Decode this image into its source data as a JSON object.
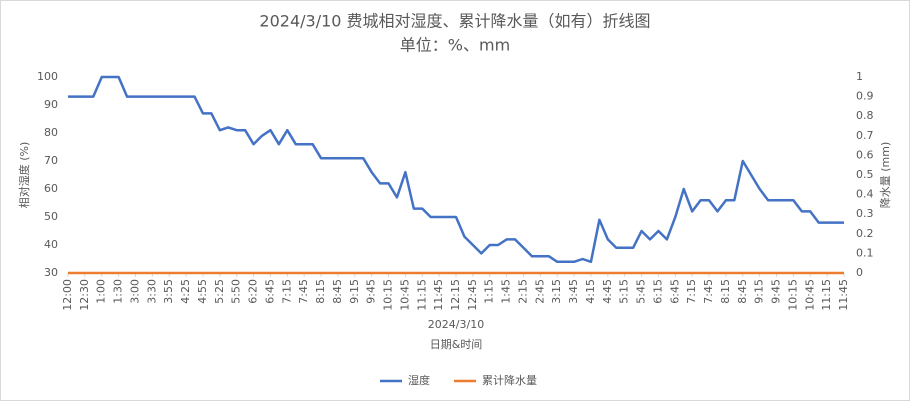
{
  "chart_data": {
    "type": "line",
    "title": "2024/3/10 费城相对湿度、累计降水量（如有）折线图",
    "subtitle": "单位：%、mm",
    "x_group_label": "2024/3/10",
    "x_label": "日期&时间",
    "y_label": "相对湿度 (%)",
    "y2_label": "降水量 (mm)",
    "categories": [
      "12:00",
      null,
      "12:30",
      null,
      "1:00",
      null,
      "1:30",
      null,
      "3:00",
      null,
      "3:30",
      null,
      "3:55",
      null,
      "4:25",
      null,
      "4:55",
      null,
      "5:25",
      null,
      "5:50",
      null,
      "6:20",
      null,
      "6:45",
      null,
      "7:15",
      null,
      "7:45",
      null,
      "8:15",
      null,
      "8:45",
      null,
      "9:15",
      null,
      "9:45",
      null,
      "10:15",
      null,
      "10:45",
      null,
      "11:15",
      null,
      "11:45",
      null,
      "12:15",
      null,
      "12:45",
      null,
      "1:15",
      null,
      "1:45",
      null,
      "2:15",
      null,
      "2:45",
      null,
      "3:15",
      null,
      "3:45",
      null,
      "4:15",
      null,
      "4:45",
      null,
      "5:15",
      null,
      "5:45",
      null,
      "6:15",
      null,
      "6:45",
      null,
      "7:15",
      null,
      "7:45",
      null,
      "8:15",
      null,
      "8:45",
      null,
      "9:15",
      null,
      "9:45",
      null,
      "10:15",
      null,
      "10:45",
      null,
      "11:15",
      null,
      "11:45"
    ],
    "series": [
      {
        "name": "湿度",
        "color": "#4472c4",
        "axis": "y",
        "values": [
          93,
          93,
          93,
          93,
          100,
          100,
          100,
          93,
          93,
          93,
          93,
          93,
          93,
          93,
          93,
          93,
          87,
          87,
          81,
          82,
          81,
          81,
          76,
          79,
          81,
          76,
          81,
          76,
          76,
          76,
          71,
          71,
          71,
          71,
          71,
          71,
          66,
          62,
          62,
          57,
          66,
          53,
          53,
          50,
          50,
          50,
          50,
          43,
          40,
          37,
          40,
          40,
          42,
          42,
          39,
          36,
          36,
          36,
          34,
          34,
          34,
          35,
          34,
          49,
          42,
          39,
          39,
          39,
          45,
          42,
          45,
          42,
          50,
          60,
          52,
          56,
          56,
          52,
          56,
          56,
          70,
          65,
          60,
          56,
          56,
          56,
          56,
          52,
          52,
          48,
          48,
          48,
          48
        ]
      },
      {
        "name": "累计降水量",
        "color": "#ed7d31",
        "axis": "y2",
        "values": [
          0,
          0,
          0,
          0,
          0,
          0,
          0,
          0,
          0,
          0,
          0,
          0,
          0,
          0,
          0,
          0,
          0,
          0,
          0,
          0,
          0,
          0,
          0,
          0,
          0,
          0,
          0,
          0,
          0,
          0,
          0,
          0,
          0,
          0,
          0,
          0,
          0,
          0,
          0,
          0,
          0,
          0,
          0,
          0,
          0,
          0,
          0,
          0,
          0,
          0,
          0,
          0,
          0,
          0,
          0,
          0,
          0,
          0,
          0,
          0,
          0,
          0,
          0,
          0,
          0,
          0,
          0,
          0,
          0,
          0,
          0,
          0,
          0,
          0,
          0,
          0,
          0,
          0,
          0,
          0,
          0,
          0,
          0,
          0,
          0,
          0,
          0,
          0,
          0,
          0,
          0,
          0,
          0
        ]
      }
    ],
    "ylim": [
      30,
      100
    ],
    "yticks": [
      30,
      40,
      50,
      60,
      70,
      80,
      90,
      100
    ],
    "y2lim": [
      0,
      1
    ],
    "y2ticks": [
      0,
      0.1,
      0.2,
      0.3,
      0.4,
      0.5,
      0.6,
      0.7,
      0.8,
      0.9,
      1
    ],
    "grid": false,
    "legend": "bottom"
  }
}
